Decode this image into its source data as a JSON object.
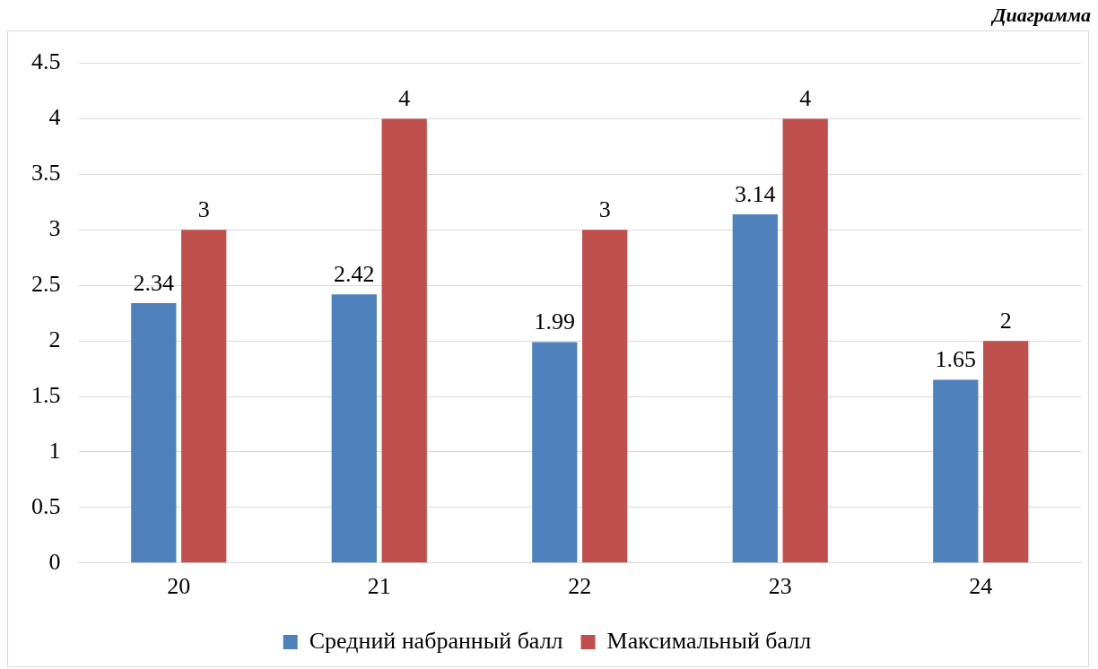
{
  "chart_data": {
    "type": "bar",
    "categories": [
      "20",
      "21",
      "22",
      "23",
      "24"
    ],
    "series": [
      {
        "name": "Средний набранный балл",
        "color": "#4f81bd",
        "values": [
          2.34,
          2.42,
          1.99,
          3.14,
          1.65
        ]
      },
      {
        "name": "Максимальный балл",
        "color": "#c0504d",
        "values": [
          3,
          4,
          3,
          4,
          2
        ]
      }
    ],
    "ylim": [
      0,
      4.5
    ],
    "yticks": [
      0,
      0.5,
      1,
      1.5,
      2,
      2.5,
      3,
      3.5,
      4,
      4.5
    ],
    "grid": "y",
    "legend": "bottom",
    "data_labels": true,
    "annotations": [
      "Диаграмма"
    ]
  }
}
